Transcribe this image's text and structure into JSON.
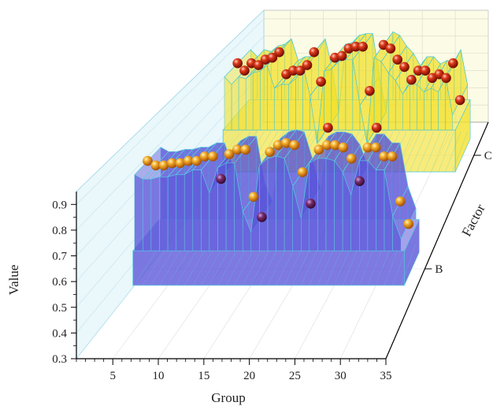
{
  "chart_data": {
    "type": "3d-ribbon-scatter",
    "xlabel": "Group",
    "ylabel": "Value",
    "zlabel": "Factor",
    "x_ticks": [
      "5",
      "10",
      "15",
      "20",
      "25",
      "30",
      "35"
    ],
    "y_ticks": [
      "0.3",
      "0.4",
      "0.5",
      "0.6",
      "0.7",
      "0.8",
      "0.9"
    ],
    "z_ticks": [
      "B",
      "C"
    ],
    "xlim": [
      1,
      35
    ],
    "ylim": [
      0.3,
      0.95
    ],
    "series": [
      {
        "factor": "B",
        "color": "#5a55d8",
        "marker_color": "#f0a020",
        "x": [
          1,
          2,
          3,
          4,
          5,
          6,
          7,
          8,
          9,
          10,
          11,
          12,
          13,
          14,
          15,
          16,
          17,
          18,
          19,
          20,
          21,
          22,
          23,
          24,
          25,
          26,
          27,
          28,
          29,
          30,
          31,
          32,
          33
        ],
        "values": [
          0.78,
          0.76,
          0.76,
          0.77,
          0.77,
          0.78,
          0.78,
          0.8,
          0.8,
          0.7,
          0.81,
          0.83,
          0.83,
          0.62,
          0.53,
          0.82,
          0.85,
          0.86,
          0.85,
          0.73,
          0.59,
          0.83,
          0.85,
          0.85,
          0.84,
          0.79,
          0.69,
          0.84,
          0.84,
          0.8,
          0.8,
          0.6,
          0.5
        ]
      },
      {
        "factor": "C",
        "color": "#f2e12a",
        "marker_color": "#cc2a10",
        "x": [
          1,
          2,
          3,
          4,
          5,
          6,
          7,
          8,
          9,
          10,
          11,
          12,
          13,
          14,
          15,
          16,
          17,
          18,
          19,
          20,
          21,
          22,
          23,
          24,
          25,
          26,
          27,
          28,
          29,
          30,
          31,
          32,
          33
        ],
        "values": [
          0.8,
          0.76,
          0.8,
          0.79,
          0.82,
          0.83,
          0.86,
          0.74,
          0.76,
          0.76,
          0.79,
          0.86,
          0.7,
          0.45,
          0.83,
          0.84,
          0.88,
          0.89,
          0.89,
          0.65,
          0.45,
          0.9,
          0.88,
          0.82,
          0.78,
          0.71,
          0.76,
          0.76,
          0.72,
          0.74,
          0.72,
          0.8,
          0.6
        ]
      }
    ],
    "grid": true
  }
}
